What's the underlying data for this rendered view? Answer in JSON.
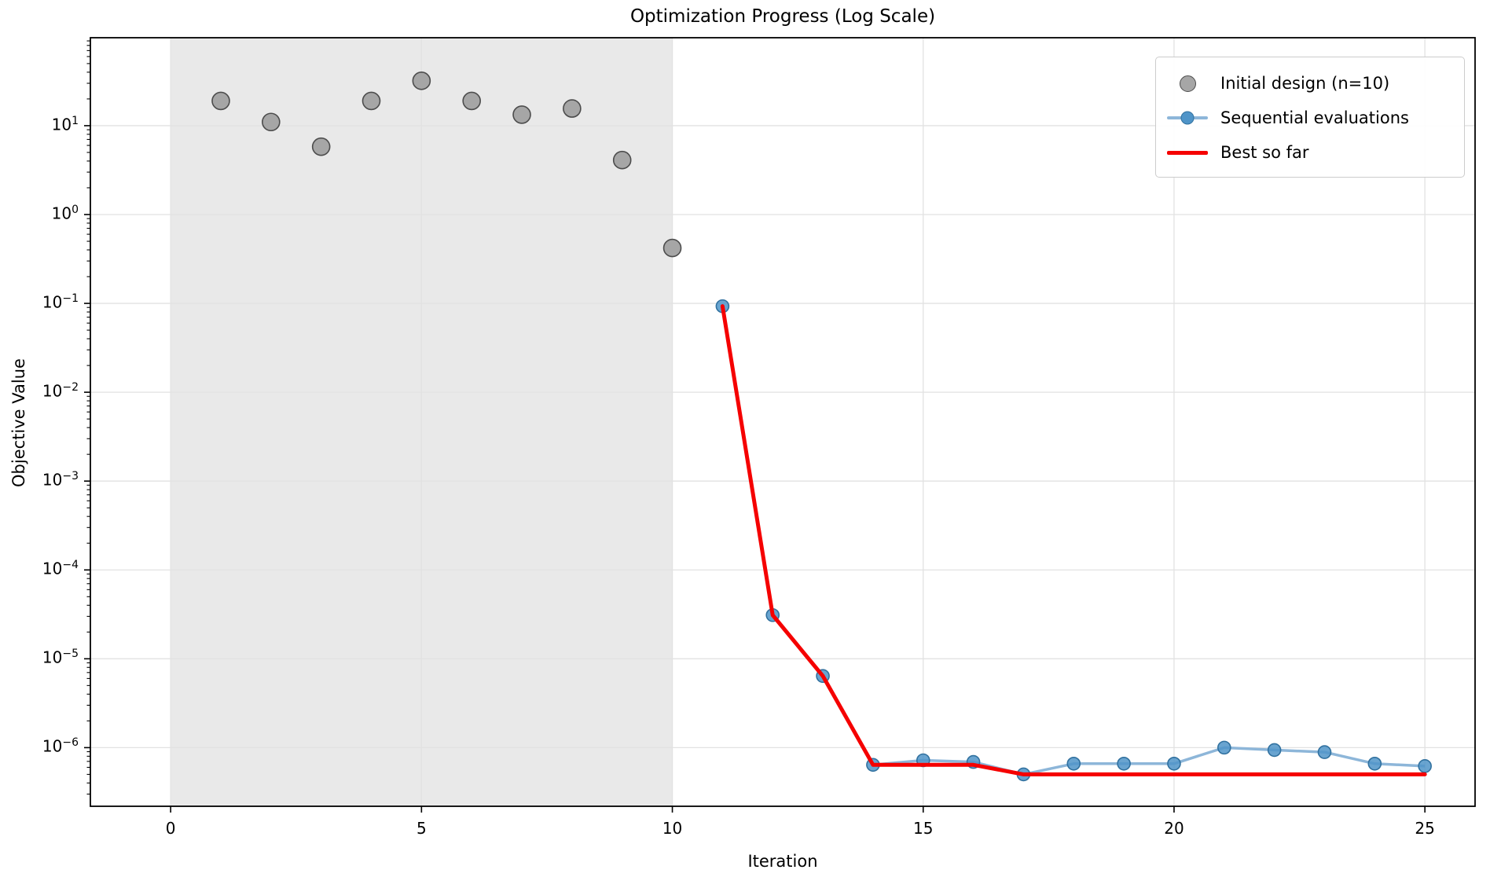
{
  "figure": {
    "title": "Optimization Progress (Log Scale)",
    "xlabel": "Iteration",
    "ylabel": "Objective Value"
  },
  "chart_data": {
    "type": "scatter",
    "title": "Optimization Progress (Log Scale)",
    "xlabel": "Iteration",
    "ylabel": "Objective Value",
    "y_scale": "log",
    "grid": true,
    "xlim": [
      -1.6,
      26.0
    ],
    "ylim": [
      2.2e-07,
      98
    ],
    "x_ticks": [
      0,
      5,
      10,
      15,
      20,
      25
    ],
    "x_tick_labels": [
      "0",
      "5",
      "10",
      "15",
      "20",
      "25"
    ],
    "y_tick_exponents": [
      1,
      0,
      -1,
      -2,
      -3,
      -4,
      -5,
      -6
    ],
    "shaded_region": {
      "x_start": 0,
      "x_end": 10,
      "color": "#e9e9e9"
    },
    "series": [
      {
        "name": "Initial design (n=10)",
        "kind": "scatter",
        "marker_color": "#a6a6a6",
        "marker_edge_color": "#4c4c4c",
        "x": [
          1,
          2,
          3,
          4,
          5,
          6,
          7,
          8,
          9,
          10
        ],
        "y": [
          19,
          11,
          5.8,
          19,
          32,
          19,
          13.3,
          15.6,
          4.1,
          0.42
        ]
      },
      {
        "name": "Sequential evaluations",
        "kind": "line_markers",
        "line_color": "#8db6d9",
        "marker_color": "#4f94c8",
        "marker_edge_color": "#31719f",
        "x": [
          11,
          12,
          13,
          14,
          15,
          16,
          17,
          18,
          19,
          20,
          21,
          22,
          23,
          24,
          25
        ],
        "y": [
          0.093,
          3.1e-05,
          6.4e-06,
          6.4e-07,
          7.2e-07,
          6.9e-07,
          5e-07,
          6.6e-07,
          6.6e-07,
          6.6e-07,
          1e-06,
          9.4e-07,
          8.9e-07,
          6.6e-07,
          6.2e-07
        ]
      },
      {
        "name": "Best so far",
        "kind": "line",
        "line_color": "#f50000",
        "x": [
          11,
          12,
          13,
          14,
          15,
          16,
          17,
          18,
          19,
          20,
          21,
          22,
          23,
          24,
          25
        ],
        "y": [
          0.093,
          3.1e-05,
          6.4e-06,
          6.4e-07,
          6.4e-07,
          6.4e-07,
          5e-07,
          5e-07,
          5e-07,
          5e-07,
          5e-07,
          5e-07,
          5e-07,
          5e-07,
          5e-07
        ]
      }
    ],
    "legend": {
      "position": "upper right",
      "entries": [
        {
          "label": "Initial design (n=10)",
          "swatch": "gray_circle"
        },
        {
          "label": "Sequential evaluations",
          "swatch": "blue_line_dot"
        },
        {
          "label": "Best so far",
          "swatch": "red_line"
        }
      ]
    },
    "colors": {
      "grid": "#e2e2e2",
      "spine": "#000000",
      "background": "#ffffff"
    }
  }
}
